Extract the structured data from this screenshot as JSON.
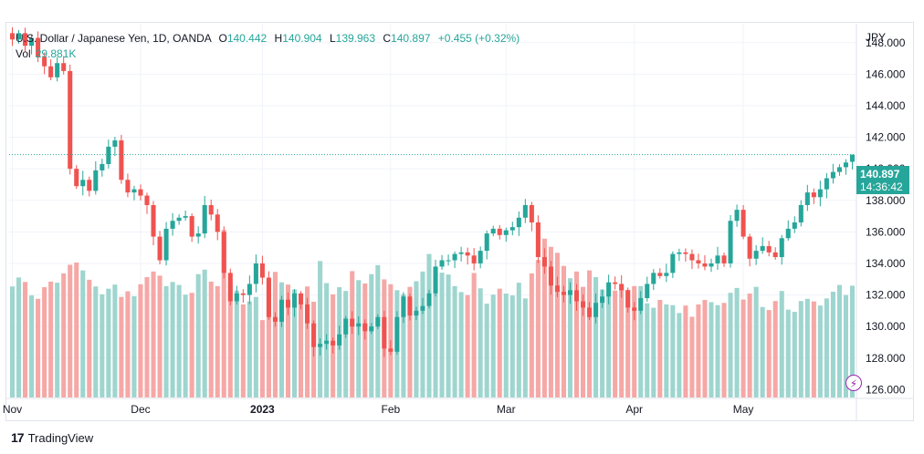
{
  "legend": {
    "symbol": "U.S. Dollar / Japanese Yen, 1D, OANDA",
    "o_label": "O",
    "o_value": "140.442",
    "h_label": "H",
    "h_value": "140.904",
    "l_label": "L",
    "l_value": "139.963",
    "c_label": "C",
    "c_value": "140.897",
    "change": "+0.455 (+0.32%)",
    "vol_label": "Vol",
    "vol_value": "29.881K"
  },
  "currency": "JPY",
  "last_price": "140.897",
  "countdown": "14:36:42",
  "brand": "TradingView",
  "colors": {
    "up": "#26a69a",
    "down": "#ef5350",
    "up_vol": "#9ed5cf",
    "down_vol": "#f5a8a6",
    "grid": "#f0f3fa"
  },
  "chart_data": {
    "type": "candlestick",
    "ylim": [
      125.5,
      149.2
    ],
    "y_ticks": [
      "126.000",
      "128.000",
      "130.000",
      "132.000",
      "134.000",
      "136.000",
      "138.000",
      "140.000",
      "142.000",
      "144.000",
      "146.000",
      "148.000"
    ],
    "x_ticks": [
      {
        "label": "Nov",
        "index": 0
      },
      {
        "label": "Dec",
        "index": 20
      },
      {
        "label": "2023",
        "index": 39
      },
      {
        "label": "Feb",
        "index": 59
      },
      {
        "label": "Mar",
        "index": 77
      },
      {
        "label": "Apr",
        "index": 97
      },
      {
        "label": "May",
        "index": 114
      }
    ],
    "closes": [
      148.2,
      148.6,
      147.8,
      148.3,
      147.1,
      146.5,
      145.8,
      146.7,
      146.2,
      140.0,
      138.9,
      139.3,
      138.6,
      139.9,
      140.3,
      141.4,
      141.8,
      139.3,
      138.5,
      138.7,
      138.3,
      137.7,
      135.7,
      134.2,
      136.2,
      136.7,
      136.9,
      137.0,
      135.7,
      135.9,
      137.7,
      137.1,
      136.0,
      133.4,
      131.6,
      132.1,
      132.0,
      132.7,
      134.0,
      133.1,
      130.6,
      130.3,
      131.7,
      131.2,
      132.1,
      131.4,
      130.2,
      128.7,
      128.9,
      129.1,
      128.8,
      129.5,
      130.5,
      130.0,
      130.2,
      129.7,
      130.0,
      130.6,
      128.6,
      128.4,
      130.6,
      131.9,
      130.7,
      131.0,
      131.3,
      132.1,
      133.8,
      134.2,
      134.2,
      134.6,
      134.7,
      134.5,
      134.0,
      134.8,
      135.9,
      136.2,
      135.8,
      136.1,
      136.3,
      136.9,
      137.7,
      136.6,
      134.4,
      133.8,
      132.6,
      132.2,
      132.0,
      132.3,
      131.6,
      131.2,
      130.6,
      131.5,
      131.9,
      132.8,
      132.7,
      132.3,
      131.2,
      131.0,
      131.8,
      132.7,
      133.4,
      133.2,
      133.4,
      134.6,
      134.7,
      134.6,
      134.2,
      134.0,
      133.8,
      134.0,
      134.5,
      134.0,
      136.7,
      137.4,
      135.7,
      134.3,
      134.8,
      135.1,
      134.7,
      134.4,
      135.6,
      136.2,
      136.6,
      137.7,
      138.5,
      138.2,
      138.7,
      139.4,
      139.8,
      140.1,
      140.4,
      140.9
    ],
    "volumes": [
      29.7,
      32.1,
      30.9,
      27.3,
      26.4,
      29.5,
      31.0,
      30.7,
      33.2,
      35.5,
      36.1,
      34.0,
      31.5,
      29.7,
      27.6,
      29.1,
      30.2,
      26.9,
      28.4,
      27.1,
      30.3,
      32.2,
      33.7,
      32.6,
      29.8,
      30.9,
      30.1,
      27.5,
      28.0,
      33.0,
      34.2,
      31.0,
      29.8,
      44.8,
      30.5,
      28.6,
      24.9,
      25.7,
      26.9,
      20.7,
      31.4,
      33.6,
      30.8,
      30.2,
      28.9,
      26.4,
      29.7,
      25.6,
      36.5,
      30.6,
      27.6,
      29.5,
      28.5,
      33.8,
      31.4,
      30.5,
      33.0,
      35.4,
      31.6,
      30.3,
      28.7,
      27.6,
      29.6,
      31.1,
      33.7,
      38.4,
      31.0,
      33.4,
      32.9,
      29.8,
      28.2,
      27.4,
      33.3,
      29.2,
      25.1,
      27.5,
      29.1,
      27.8,
      27.3,
      30.7,
      26.5,
      33.2,
      36.8,
      42.5,
      40.3,
      38.7,
      35.2,
      31.9,
      33.7,
      29.6,
      34.0,
      32.2,
      28.9,
      27.4,
      28.6,
      29.2,
      28.8,
      29.8,
      29.8,
      25.2,
      24.0,
      26.1,
      24.9,
      24.7,
      22.6,
      24.6,
      21.6,
      24.9,
      26.1,
      25.5,
      24.7,
      25.3,
      28.0,
      29.3,
      26.2,
      27.8,
      29.6,
      24.2,
      23.4,
      25.8,
      28.5,
      23.5,
      22.9,
      25.8,
      26.4,
      25.7,
      24.6,
      26.5,
      28.3,
      30.1,
      27.4,
      29.9
    ],
    "open_last": 140.442,
    "high_last": 140.904,
    "low_last": 139.963,
    "close_last": 140.897
  }
}
